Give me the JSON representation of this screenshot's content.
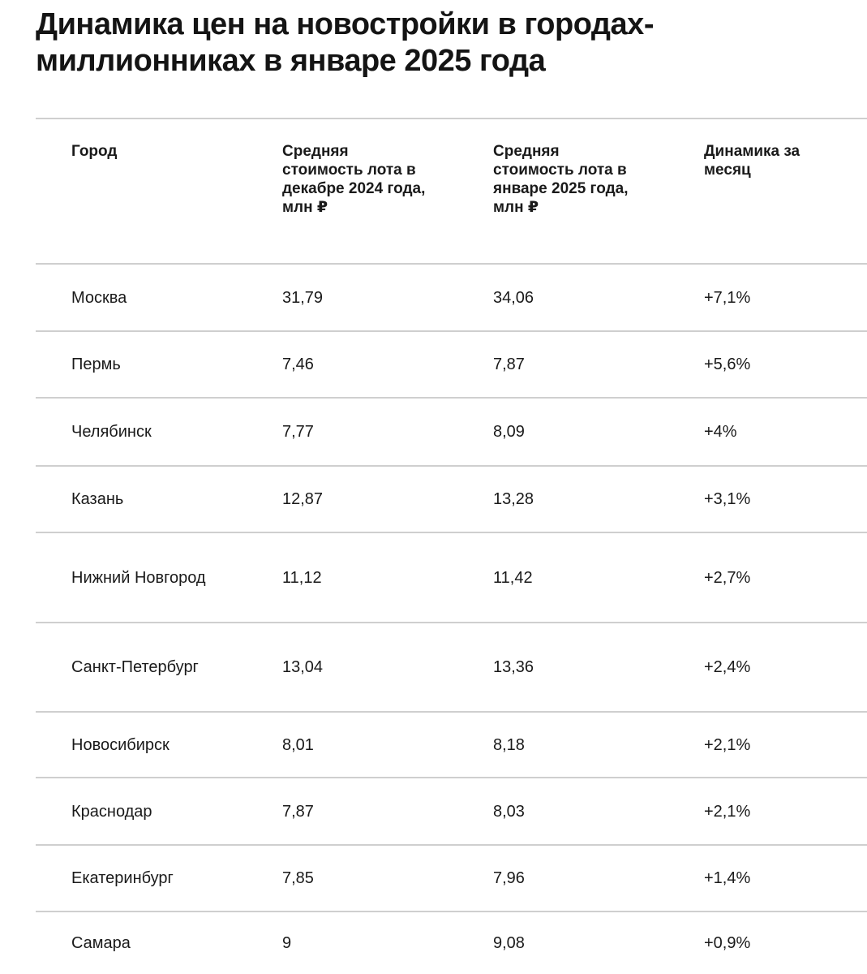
{
  "title": "Динамика цен на новостройки в городах-миллионниках в январе 2025 года",
  "table": {
    "columns": [
      "Город",
      "Средняя стоимость лота в декабре 2024 года, млн ₽",
      "Средняя стоимость лота в январе 2025 года, млн ₽",
      "Динамика за месяц"
    ],
    "rows": [
      [
        "Москва",
        "31,79",
        "34,06",
        "+7,1%"
      ],
      [
        "Пермь",
        "7,46",
        "7,87",
        "+5,6%"
      ],
      [
        "Челябинск",
        "7,77",
        "8,09",
        "+4%"
      ],
      [
        "Казань",
        "12,87",
        "13,28",
        "+3,1%"
      ],
      [
        "Нижний Новгород",
        "11,12",
        "11,42",
        "+2,7%"
      ],
      [
        "Санкт-Петербург",
        "13,04",
        "13,36",
        "+2,4%"
      ],
      [
        "Новосибирск",
        "8,01",
        "8,18",
        "+2,1%"
      ],
      [
        "Краснодар",
        "7,87",
        "8,03",
        "+2,1%"
      ],
      [
        "Екатеринбург",
        "7,85",
        "7,96",
        "+1,4%"
      ],
      [
        "Самара",
        "9",
        "9,08",
        "+0,9%"
      ]
    ]
  }
}
